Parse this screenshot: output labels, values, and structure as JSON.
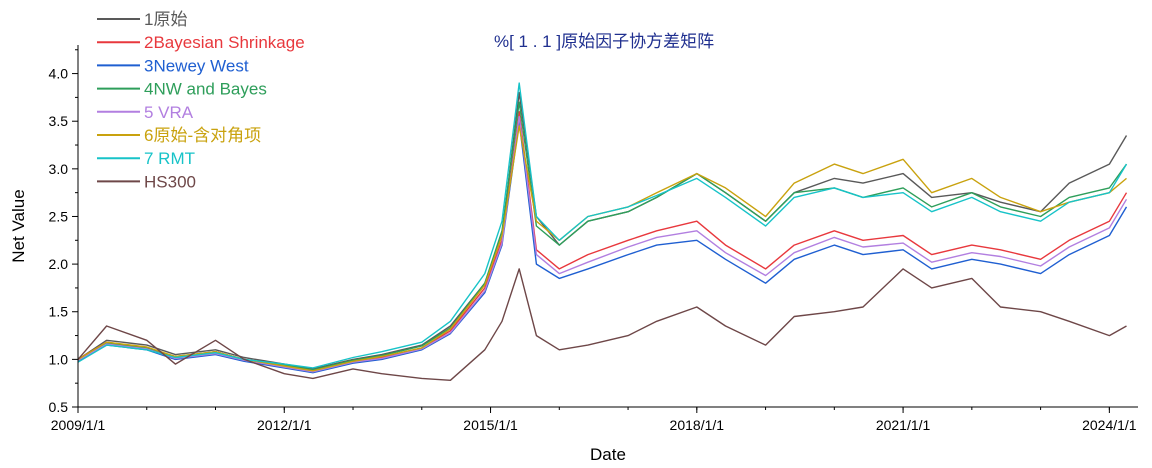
{
  "chart_data": {
    "type": "line",
    "title": "%[ 1 . 1 ]原始因子协方差矩阵",
    "xlabel": "Date",
    "ylabel": "Net Value",
    "xlim": [
      "2009-01-01",
      "2024-06-01"
    ],
    "ylim": [
      0.5,
      4.3
    ],
    "grid": false,
    "legend_position": "top-left",
    "x_ticks": [
      "2009/1/1",
      "2012/1/1",
      "2015/1/1",
      "2018/1/1",
      "2021/1/1",
      "2024/1/1"
    ],
    "y_ticks": [
      "0.5",
      "1.0",
      "1.5",
      "2.0",
      "2.5",
      "3.0",
      "3.5",
      "4.0"
    ],
    "x": [
      "2009-01",
      "2009-06",
      "2010-01",
      "2010-06",
      "2011-01",
      "2011-06",
      "2012-01",
      "2012-06",
      "2013-01",
      "2013-06",
      "2014-01",
      "2014-06",
      "2014-12",
      "2015-03",
      "2015-06",
      "2015-09",
      "2016-01",
      "2016-06",
      "2017-01",
      "2017-06",
      "2018-01",
      "2018-06",
      "2019-01",
      "2019-06",
      "2020-01",
      "2020-06",
      "2021-01",
      "2021-06",
      "2022-01",
      "2022-06",
      "2023-01",
      "2023-06",
      "2024-01",
      "2024-04"
    ],
    "series": [
      {
        "name": "1原始",
        "color": "#595959",
        "values": [
          1.0,
          1.2,
          1.15,
          1.05,
          1.1,
          1.02,
          0.95,
          0.9,
          1.0,
          1.05,
          1.15,
          1.35,
          1.8,
          2.3,
          3.8,
          2.5,
          2.2,
          2.45,
          2.55,
          2.7,
          2.95,
          2.75,
          2.45,
          2.75,
          2.9,
          2.85,
          2.95,
          2.7,
          2.75,
          2.65,
          2.55,
          2.85,
          3.05,
          3.35
        ]
      },
      {
        "name": "2Bayesian Shrinkage",
        "color": "#e8383d",
        "values": [
          1.0,
          1.18,
          1.12,
          1.02,
          1.08,
          1.0,
          0.93,
          0.88,
          0.98,
          1.02,
          1.12,
          1.3,
          1.75,
          2.25,
          3.6,
          2.15,
          1.95,
          2.1,
          2.25,
          2.35,
          2.45,
          2.2,
          1.95,
          2.2,
          2.35,
          2.25,
          2.3,
          2.1,
          2.2,
          2.15,
          2.05,
          2.25,
          2.45,
          2.75
        ]
      },
      {
        "name": "3Newey West",
        "color": "#1f5fd1",
        "values": [
          0.98,
          1.15,
          1.1,
          1.0,
          1.05,
          0.98,
          0.91,
          0.86,
          0.96,
          1.0,
          1.1,
          1.27,
          1.7,
          2.2,
          3.5,
          2.0,
          1.85,
          1.95,
          2.1,
          2.2,
          2.25,
          2.05,
          1.8,
          2.05,
          2.2,
          2.1,
          2.15,
          1.95,
          2.05,
          2.0,
          1.9,
          2.1,
          2.3,
          2.6
        ]
      },
      {
        "name": "4NW and Bayes",
        "color": "#2e9e5a",
        "values": [
          0.99,
          1.17,
          1.12,
          1.03,
          1.08,
          1.0,
          0.94,
          0.89,
          0.99,
          1.04,
          1.14,
          1.33,
          1.8,
          2.35,
          3.7,
          2.4,
          2.2,
          2.45,
          2.55,
          2.7,
          2.95,
          2.75,
          2.45,
          2.75,
          2.8,
          2.7,
          2.8,
          2.6,
          2.75,
          2.6,
          2.5,
          2.7,
          2.8,
          3.05
        ]
      },
      {
        "name": "5 VRA",
        "color": "#b27fe0",
        "values": [
          0.99,
          1.16,
          1.11,
          1.01,
          1.06,
          0.99,
          0.92,
          0.87,
          0.97,
          1.01,
          1.11,
          1.28,
          1.72,
          2.22,
          3.55,
          2.1,
          1.9,
          2.02,
          2.18,
          2.28,
          2.35,
          2.12,
          1.88,
          2.12,
          2.28,
          2.18,
          2.22,
          2.02,
          2.12,
          2.08,
          1.98,
          2.18,
          2.38,
          2.68
        ]
      },
      {
        "name": "6原始-含对角项",
        "color": "#c9a20e",
        "values": [
          1.0,
          1.18,
          1.13,
          1.03,
          1.08,
          1.0,
          0.93,
          0.88,
          0.98,
          1.03,
          1.12,
          1.32,
          1.78,
          2.3,
          3.45,
          2.45,
          2.25,
          2.5,
          2.6,
          2.75,
          2.95,
          2.8,
          2.5,
          2.85,
          3.05,
          2.95,
          3.1,
          2.75,
          2.9,
          2.7,
          2.55,
          2.65,
          2.75,
          2.9
        ]
      },
      {
        "name": "7 RMT",
        "color": "#17c3c8",
        "values": [
          0.97,
          1.15,
          1.1,
          1.02,
          1.07,
          1.0,
          0.95,
          0.91,
          1.02,
          1.08,
          1.18,
          1.4,
          1.9,
          2.45,
          3.9,
          2.5,
          2.25,
          2.5,
          2.6,
          2.72,
          2.9,
          2.7,
          2.4,
          2.7,
          2.8,
          2.7,
          2.75,
          2.55,
          2.7,
          2.55,
          2.45,
          2.65,
          2.75,
          3.05
        ]
      },
      {
        "name": "HS300",
        "color": "#6e4748",
        "values": [
          1.0,
          1.35,
          1.2,
          0.95,
          1.2,
          1.0,
          0.85,
          0.8,
          0.9,
          0.85,
          0.8,
          0.78,
          1.1,
          1.4,
          1.95,
          1.25,
          1.1,
          1.15,
          1.25,
          1.4,
          1.55,
          1.35,
          1.15,
          1.45,
          1.5,
          1.55,
          1.95,
          1.75,
          1.85,
          1.55,
          1.5,
          1.4,
          1.25,
          1.35
        ]
      }
    ]
  }
}
